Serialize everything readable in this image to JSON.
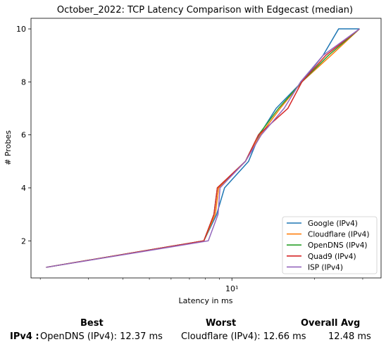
{
  "chart_data": {
    "type": "line",
    "title": "October_2022: TCP Latency Comparison with Edgecast (median)",
    "xlabel": "Latency in ms",
    "ylabel": "# Probes",
    "xscale": "log",
    "xlim": [
      1.85,
      35
    ],
    "ylim": [
      0.6,
      10.4
    ],
    "yticks": [
      2,
      4,
      6,
      8,
      10
    ],
    "xticks_major": [
      10
    ],
    "xtick_labels": [
      "10¹"
    ],
    "xticks_minor": [
      2,
      3,
      4,
      5,
      6,
      7,
      8,
      9,
      20,
      30
    ],
    "legend_position": "lower right",
    "series": [
      {
        "name": "Google (IPv4)",
        "color": "#1f77b4",
        "x": [
          2.1,
          7.9,
          8.8,
          9.4,
          11.5,
          12.6,
          14.5,
          18.0,
          21.5,
          24.5,
          29.2
        ],
        "y": [
          1,
          2,
          3,
          4,
          5,
          6,
          7,
          8,
          9,
          10,
          10
        ]
      },
      {
        "name": "Cloudflare (IPv4)",
        "color": "#ff7f0e",
        "x": [
          2.1,
          7.9,
          8.7,
          8.95,
          11.2,
          12.7,
          15.0,
          18.0,
          23.0,
          29.2
        ],
        "y": [
          1,
          2,
          3,
          4,
          5,
          6,
          7,
          8,
          9,
          10
        ]
      },
      {
        "name": "OpenDNS (IPv4)",
        "color": "#2ca02c",
        "x": [
          2.1,
          7.9,
          8.6,
          8.85,
          11.2,
          12.5,
          14.8,
          18.0,
          22.5,
          29.2
        ],
        "y": [
          1,
          2,
          3,
          4,
          5,
          6,
          7,
          8,
          9,
          10
        ]
      },
      {
        "name": "Quad9 (IPv4)",
        "color": "#d62728",
        "x": [
          2.1,
          7.9,
          8.6,
          8.85,
          11.2,
          12.5,
          16.0,
          18.0,
          22.0,
          29.2
        ],
        "y": [
          1,
          2,
          3,
          4,
          5,
          6,
          7,
          8,
          9,
          10
        ]
      },
      {
        "name": "ISP (IPv4)",
        "color": "#9467bd",
        "x": [
          2.1,
          8.2,
          8.9,
          9.05,
          11.2,
          12.8,
          15.5,
          17.8,
          21.5,
          29.2
        ],
        "y": [
          1,
          2,
          3,
          4,
          5,
          6,
          7,
          8,
          9,
          10
        ]
      }
    ]
  },
  "summary": {
    "best_header": "Best",
    "worst_header": "Worst",
    "avg_header": "Overall Avg",
    "row_label": "IPv4 :",
    "best_value": "OpenDNS (IPv4): 12.37 ms",
    "worst_value": "Cloudflare (IPv4): 12.66 ms",
    "avg_value": "12.48 ms"
  }
}
